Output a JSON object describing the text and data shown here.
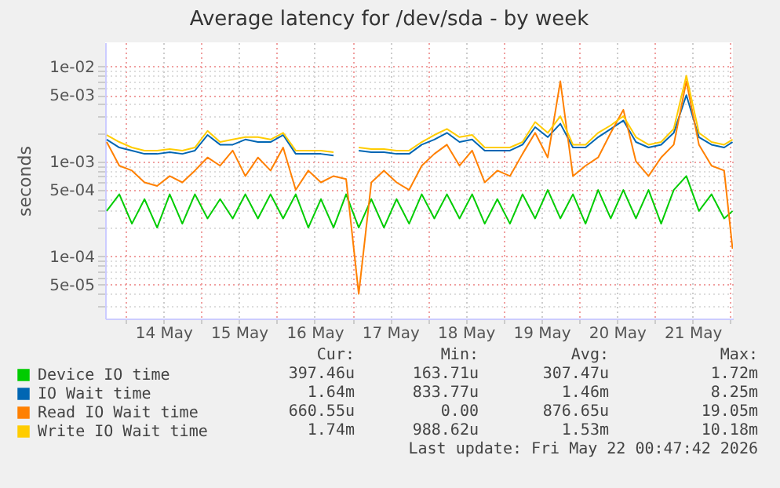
{
  "chart_data": {
    "type": "line",
    "title": "Average latency for /dev/sda - by week",
    "ylabel": "seconds",
    "log": true,
    "grid": true,
    "legend": "bottom",
    "line_style": "solid",
    "xlim": [
      "2026-05-13T17:30",
      "2026-05-22T00:47"
    ],
    "xticks": [
      {
        "value": "2026-05-14T00:00",
        "label": null
      },
      {
        "value": "2026-05-14T12:00",
        "label": "14 May"
      },
      {
        "value": "2026-05-15T00:00",
        "label": null
      },
      {
        "value": "2026-05-15T12:00",
        "label": "15 May"
      },
      {
        "value": "2026-05-16T00:00",
        "label": null
      },
      {
        "value": "2026-05-16T12:00",
        "label": "16 May"
      },
      {
        "value": "2026-05-17T00:00",
        "label": null
      },
      {
        "value": "2026-05-17T12:00",
        "label": "17 May"
      },
      {
        "value": "2026-05-18T00:00",
        "label": null
      },
      {
        "value": "2026-05-18T12:00",
        "label": "18 May"
      },
      {
        "value": "2026-05-19T00:00",
        "label": null
      },
      {
        "value": "2026-05-19T12:00",
        "label": "19 May"
      },
      {
        "value": "2026-05-20T00:00",
        "label": null
      },
      {
        "value": "2026-05-20T12:00",
        "label": "20 May"
      },
      {
        "value": "2026-05-21T00:00",
        "label": null
      },
      {
        "value": "2026-05-21T12:00",
        "label": "21 May"
      },
      {
        "value": "2026-05-22T00:00",
        "label": null
      }
    ],
    "ylim": [
      2.2e-05,
      0.018
    ],
    "yticks": [
      {
        "value": 3e-05,
        "label": null
      },
      {
        "value": 4e-05,
        "label": null
      },
      {
        "value": 5e-05,
        "label": "5e-05"
      },
      {
        "value": 6e-05,
        "label": null
      },
      {
        "value": 7e-05,
        "label": null
      },
      {
        "value": 8e-05,
        "label": null
      },
      {
        "value": 9e-05,
        "label": null
      },
      {
        "value": 0.0001,
        "label": "1e-04"
      },
      {
        "value": 0.0002,
        "label": null
      },
      {
        "value": 0.0003,
        "label": null
      },
      {
        "value": 0.0004,
        "label": null
      },
      {
        "value": 0.0005,
        "label": "5e-04"
      },
      {
        "value": 0.0006,
        "label": null
      },
      {
        "value": 0.0007,
        "label": null
      },
      {
        "value": 0.0008,
        "label": null
      },
      {
        "value": 0.0009,
        "label": null
      },
      {
        "value": 0.001,
        "label": "1e-03"
      },
      {
        "value": 0.002,
        "label": null
      },
      {
        "value": 0.003,
        "label": null
      },
      {
        "value": 0.004,
        "label": null
      },
      {
        "value": 0.005,
        "label": "5e-03"
      },
      {
        "value": 0.006,
        "label": null
      },
      {
        "value": 0.007,
        "label": null
      },
      {
        "value": 0.008,
        "label": null
      },
      {
        "value": 0.009,
        "label": null
      },
      {
        "value": 0.01,
        "label": "1e-02"
      }
    ],
    "x": [
      "2026-05-13T18:00",
      "2026-05-13T22:00",
      "2026-05-14T02:00",
      "2026-05-14T06:00",
      "2026-05-14T10:00",
      "2026-05-14T14:00",
      "2026-05-14T18:00",
      "2026-05-14T22:00",
      "2026-05-15T02:00",
      "2026-05-15T06:00",
      "2026-05-15T10:00",
      "2026-05-15T14:00",
      "2026-05-15T18:00",
      "2026-05-15T22:00",
      "2026-05-16T02:00",
      "2026-05-16T06:00",
      "2026-05-16T10:00",
      "2026-05-16T14:00",
      "2026-05-16T18:00",
      "2026-05-16T22:00",
      "2026-05-17T02:00",
      "2026-05-17T06:00",
      "2026-05-17T10:00",
      "2026-05-17T14:00",
      "2026-05-17T18:00",
      "2026-05-17T22:00",
      "2026-05-18T02:00",
      "2026-05-18T06:00",
      "2026-05-18T10:00",
      "2026-05-18T14:00",
      "2026-05-18T18:00",
      "2026-05-18T22:00",
      "2026-05-19T02:00",
      "2026-05-19T06:00",
      "2026-05-19T10:00",
      "2026-05-19T14:00",
      "2026-05-19T18:00",
      "2026-05-19T22:00",
      "2026-05-20T02:00",
      "2026-05-20T06:00",
      "2026-05-20T10:00",
      "2026-05-20T14:00",
      "2026-05-20T18:00",
      "2026-05-20T22:00",
      "2026-05-21T02:00",
      "2026-05-21T06:00",
      "2026-05-21T10:00",
      "2026-05-21T14:00",
      "2026-05-21T18:00",
      "2026-05-21T22:00",
      "2026-05-22T00:40"
    ],
    "series": [
      {
        "name": "Device IO time",
        "color": "#00cc00",
        "values": [
          0.0003,
          0.00045,
          0.00022,
          0.0004,
          0.0002,
          0.00045,
          0.00022,
          0.00045,
          0.00025,
          0.0004,
          0.00025,
          0.00045,
          0.00025,
          0.00045,
          0.00025,
          0.00045,
          0.0002,
          0.0004,
          0.0002,
          0.00045,
          0.0002,
          0.0004,
          0.0002,
          0.0004,
          0.00022,
          0.00045,
          0.00025,
          0.00045,
          0.00025,
          0.00045,
          0.00022,
          0.0004,
          0.00022,
          0.00045,
          0.00025,
          0.0005,
          0.00025,
          0.00045,
          0.00022,
          0.0005,
          0.00025,
          0.0005,
          0.00025,
          0.0005,
          0.00022,
          0.0005,
          0.0007,
          0.0003,
          0.00045,
          0.00025,
          0.0003
        ]
      },
      {
        "name": "IO Wait time",
        "color": "#0066b3",
        "values": [
          0.0017,
          0.0014,
          0.0013,
          0.0012,
          0.0012,
          0.00125,
          0.0012,
          0.0013,
          0.0019,
          0.0015,
          0.0015,
          0.0017,
          0.0016,
          0.0016,
          0.0019,
          0.0012,
          0.0012,
          0.0012,
          0.00115,
          null,
          0.0013,
          0.00125,
          0.00125,
          0.0012,
          0.0012,
          0.0015,
          0.0017,
          0.002,
          0.0016,
          0.0017,
          0.0013,
          0.0013,
          0.0013,
          0.0015,
          0.0023,
          0.0018,
          0.0025,
          0.0014,
          0.0014,
          0.0018,
          0.0022,
          0.0027,
          0.0016,
          0.0014,
          0.0015,
          0.002,
          0.005,
          0.0018,
          0.0015,
          0.0014,
          0.0016
        ]
      },
      {
        "name": "Read IO Wait time",
        "color": "#ff8000",
        "values": [
          0.0016,
          0.0009,
          0.0008,
          0.0006,
          0.00055,
          0.0007,
          0.0006,
          0.0008,
          0.0011,
          0.0009,
          0.0013,
          0.0007,
          0.0011,
          0.0008,
          0.0014,
          0.0005,
          0.0008,
          0.0006,
          0.0007,
          0.00065,
          4e-05,
          0.0006,
          0.0008,
          0.0006,
          0.0005,
          0.0009,
          0.0012,
          0.0015,
          0.0009,
          0.0013,
          0.0006,
          0.0008,
          0.0007,
          0.0012,
          0.002,
          0.0011,
          0.007,
          0.0007,
          0.0009,
          0.0011,
          0.002,
          0.0035,
          0.001,
          0.0007,
          0.0011,
          0.0015,
          0.007,
          0.0015,
          0.0009,
          0.0008,
          0.00012
        ]
      },
      {
        "name": "Write IO Wait time",
        "color": "#ffcc00",
        "values": [
          0.0019,
          0.0016,
          0.0014,
          0.0013,
          0.0013,
          0.00135,
          0.0013,
          0.0014,
          0.0021,
          0.0016,
          0.0017,
          0.0018,
          0.0018,
          0.0017,
          0.002,
          0.0013,
          0.0013,
          0.0013,
          0.00125,
          null,
          0.0014,
          0.00135,
          0.00135,
          0.0013,
          0.0013,
          0.0016,
          0.0019,
          0.0022,
          0.0018,
          0.0019,
          0.0014,
          0.0014,
          0.0014,
          0.0016,
          0.0026,
          0.002,
          0.003,
          0.0015,
          0.0015,
          0.002,
          0.0024,
          0.003,
          0.0018,
          0.0015,
          0.0016,
          0.0022,
          0.008,
          0.002,
          0.0016,
          0.0015,
          0.0017
        ]
      }
    ],
    "annotations": [
      "Cur:",
      "Min:",
      "Avg:",
      "Max:",
      "397.46u",
      "163.71u",
      "307.47u",
      "1.72m",
      "1.64m",
      "833.77u",
      "1.46m",
      "8.25m",
      "660.55u",
      "0.00",
      "876.65u",
      "19.05m",
      "1.74m",
      "988.62u",
      "1.53m",
      "10.18m",
      "Last update: Fri May 22 00:47:42 2026"
    ]
  }
}
